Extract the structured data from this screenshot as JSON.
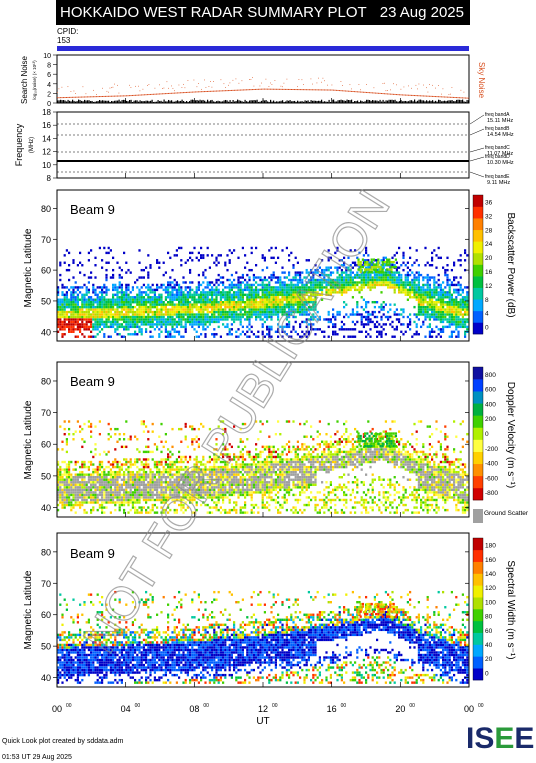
{
  "header": {
    "title": "HOKKAIDO WEST RADAR SUMMARY PLOT",
    "date": "23 Aug 2025",
    "cpid_label": "CPID:",
    "cpid_value": "153"
  },
  "noise_panel": {
    "ylabel": "Search Noise",
    "ylabel_sub": "log₁₀(noise) (× 10¹³)",
    "right_label": "Sky Noise",
    "yticks": [
      "0",
      "2",
      "4",
      "6",
      "8",
      "10"
    ]
  },
  "freq_panel": {
    "ylabel": "Frequency",
    "ylabel_sub": "(MHz)",
    "yticks": [
      "8",
      "10",
      "12",
      "14",
      "16",
      "18"
    ],
    "bands": [
      "freq bandA 15.11 MHz",
      "freq bandB 14.54 MHz",
      "freq bandC 11.07 MHz",
      "freq bandD 10.30 MHz",
      "freq bandE 9.11 MHz"
    ]
  },
  "panels": [
    {
      "beam": "Beam  9",
      "ylabel": "Magnetic Latitude",
      "yticks": [
        "40",
        "50",
        "60",
        "70",
        "80"
      ],
      "cbar_label": "Backscatter Power (dB)",
      "cbar_ticks": [
        "0",
        "4",
        "8",
        "12",
        "16",
        "20",
        "24",
        "28",
        "32",
        "36"
      ],
      "cbar_colors": [
        "#0000c8",
        "#0060ff",
        "#00a8ff",
        "#00c8a0",
        "#00c040",
        "#40d000",
        "#b0e000",
        "#f0f000",
        "#ffc000",
        "#ff8000",
        "#ff3000",
        "#c00000"
      ]
    },
    {
      "beam": "Beam  9",
      "ylabel": "Magnetic Latitude",
      "yticks": [
        "40",
        "50",
        "60",
        "70",
        "80"
      ],
      "cbar_label": "Doppler Velocity (m s⁻¹)",
      "cbar_ticks": [
        "-800",
        "-600",
        "-400",
        "-200",
        "0",
        "200",
        "400",
        "600",
        "800"
      ],
      "cbar_colors": [
        "#d00000",
        "#ff4000",
        "#ff9000",
        "#ffd000",
        "#ffff40",
        "#b0f000",
        "#40d000",
        "#00b040",
        "#0090c0",
        "#0040ff",
        "#1010a0"
      ],
      "ground_scatter_label": "Ground Scatter"
    },
    {
      "beam": "Beam  9",
      "ylabel": "Magnetic Latitude",
      "yticks": [
        "40",
        "50",
        "60",
        "70",
        "80"
      ],
      "cbar_label": "Spectral Width (m s⁻¹)",
      "cbar_ticks": [
        "0",
        "20",
        "40",
        "60",
        "80",
        "100",
        "120",
        "140",
        "160",
        "180"
      ],
      "cbar_colors": [
        "#0000c8",
        "#0060ff",
        "#00a8ff",
        "#00c8a0",
        "#00c040",
        "#40d000",
        "#b0e000",
        "#f0f000",
        "#ffc000",
        "#ff8000",
        "#ff3000",
        "#c00000"
      ]
    }
  ],
  "xaxis": {
    "label": "UT",
    "ticks": [
      "00",
      "04",
      "08",
      "12",
      "16",
      "20",
      "00"
    ]
  },
  "watermark": "NOT FOR PUBLICATION",
  "footer": {
    "credit": "Quick Look plot created by sddata.adm",
    "timestamp": "01:53 UT 29 Aug 2025",
    "logo_letters": [
      "I",
      "S",
      "E",
      "E"
    ],
    "logo_colors": [
      "#1a2a6a",
      "#1a2a6a",
      "#2a9a3a",
      "#1a2a6a"
    ]
  },
  "chart_data": [
    {
      "type": "line",
      "title": "Search Noise / Sky Noise",
      "ylabel": "Search Noise",
      "ylim": [
        0,
        10
      ],
      "x": [
        "00",
        "04",
        "08",
        "12",
        "16",
        "20",
        "00"
      ],
      "series": [
        {
          "name": "Sky Noise",
          "values": [
            1.2,
            1.6,
            2.4,
            3.0,
            2.8,
            1.8,
            1.1
          ]
        }
      ]
    },
    {
      "type": "line",
      "ylabel": "Frequency",
      "ylim": [
        8,
        18
      ],
      "series": [
        {
          "name": "freq bandA 15.11 MHz",
          "values": [
            15.11
          ]
        },
        {
          "name": "freq bandB 14.54 MHz",
          "values": [
            14.54
          ]
        },
        {
          "name": "freq bandC 11.07 MHz",
          "values": [
            11.07
          ]
        },
        {
          "name": "freq bandD 10.30 MHz",
          "values": [
            10.3
          ]
        },
        {
          "name": "freq bandE 9.11 MHz",
          "values": [
            9.11
          ]
        }
      ]
    },
    {
      "type": "heatmap",
      "ylabel": "Magnetic Latitude",
      "ylim": [
        37,
        86
      ],
      "xlabel": "UT",
      "band_center_lat": [
        45,
        46,
        47,
        49,
        52,
        55,
        50,
        45
      ],
      "band_center_time_hours": [
        0,
        4,
        8,
        12,
        16,
        19,
        21,
        24
      ]
    }
  ]
}
